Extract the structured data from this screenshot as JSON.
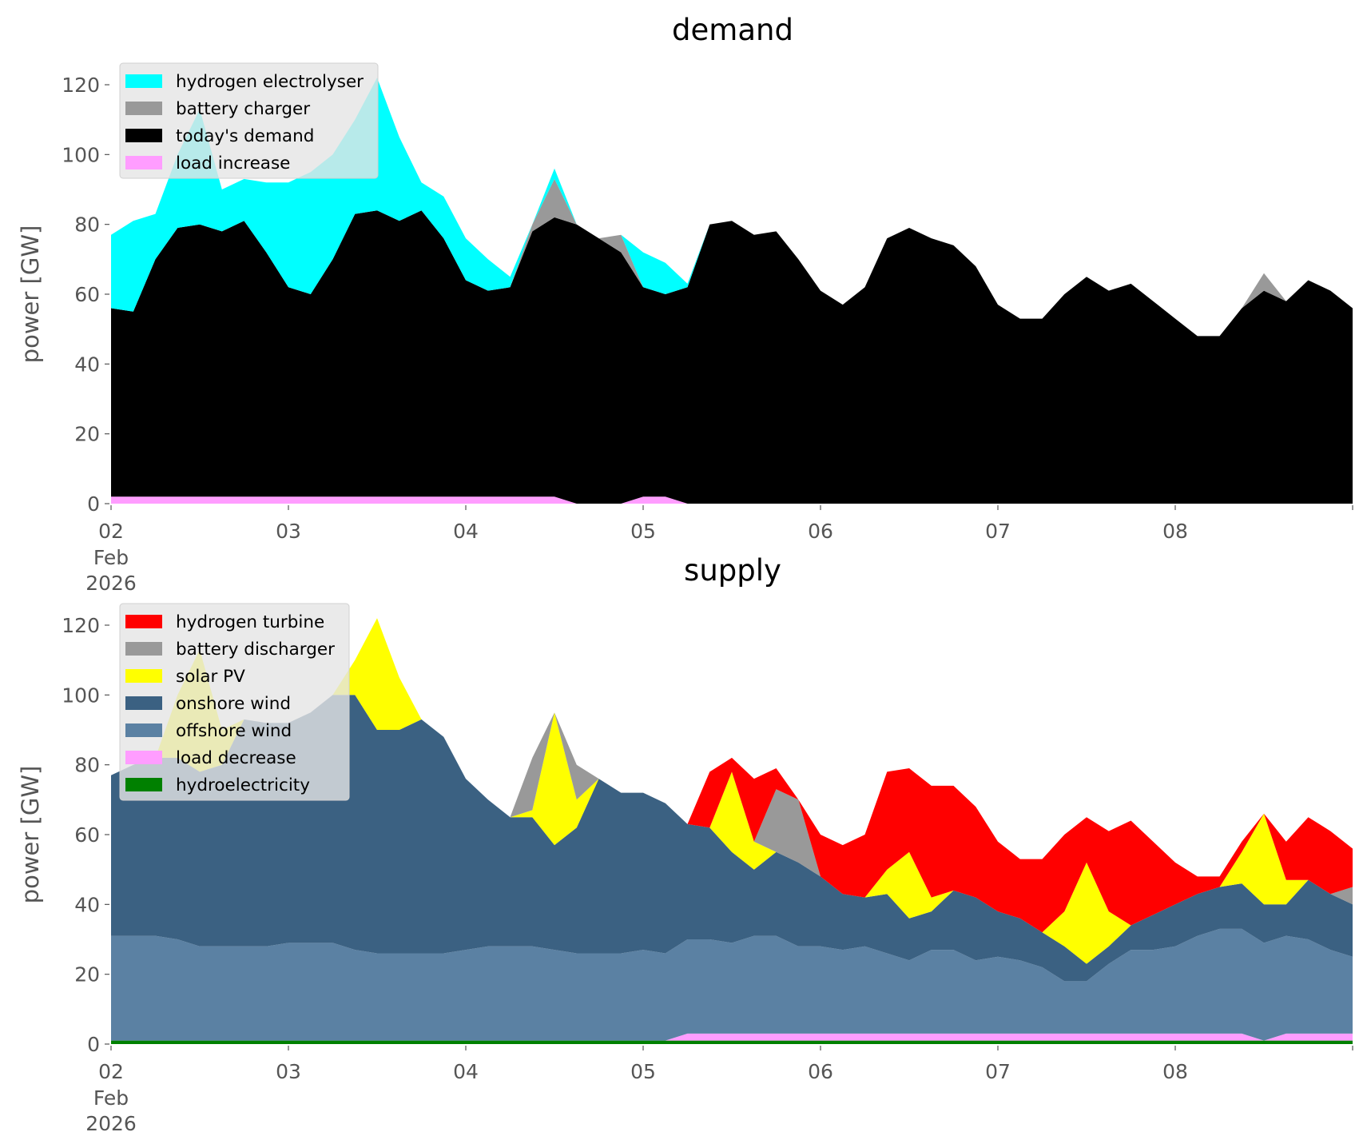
{
  "chart_data": [
    {
      "type": "area",
      "stacked": true,
      "title": "demand",
      "ylabel": "power [GW]",
      "xlabel": "",
      "x_start": "2026-02-02 00:00",
      "step_hours": 3,
      "ylim": [
        0,
        126
      ],
      "yticks": [
        "0",
        "20",
        "40",
        "60",
        "80",
        "100",
        "120"
      ],
      "xticks": [
        "02",
        "03",
        "04",
        "05",
        "06",
        "07",
        "08"
      ],
      "xtick_sub": [
        "Feb",
        "2026"
      ],
      "legend_position": "top-left",
      "series": [
        {
          "name": "load increase",
          "color": "#ff9dff",
          "values": [
            2,
            2,
            2,
            2,
            2,
            2,
            2,
            2,
            2,
            2,
            2,
            2,
            2,
            2,
            2,
            2,
            2,
            2,
            2,
            2,
            2,
            0,
            0,
            0,
            2,
            2,
            0,
            0,
            0,
            0,
            0,
            0,
            0,
            0,
            0,
            0,
            0,
            0,
            0,
            0,
            0,
            0,
            0,
            0,
            0,
            0,
            0,
            0,
            0,
            0,
            0,
            0,
            0,
            0,
            0,
            0,
            0
          ]
        },
        {
          "name": "today's demand",
          "color": "#000000",
          "values": [
            54,
            53,
            68,
            77,
            78,
            76,
            79,
            70,
            60,
            58,
            68,
            81,
            82,
            79,
            82,
            74,
            62,
            59,
            60,
            76,
            80,
            80,
            76,
            72,
            60,
            58,
            62,
            80,
            81,
            77,
            78,
            70,
            61,
            57,
            62,
            76,
            79,
            76,
            74,
            68,
            57,
            53,
            53,
            60,
            65,
            61,
            63,
            58,
            53,
            48,
            48,
            56,
            61,
            58,
            64,
            61,
            56
          ]
        },
        {
          "name": "battery charger",
          "color": "#999999",
          "values": [
            0,
            0,
            0,
            0,
            0,
            0,
            0,
            0,
            0,
            0,
            0,
            0,
            0,
            0,
            0,
            0,
            0,
            0,
            0,
            2,
            11,
            0,
            0,
            5,
            0,
            0,
            0,
            0,
            0,
            0,
            0,
            0,
            0,
            0,
            0,
            0,
            0,
            0,
            0,
            0,
            0,
            0,
            0,
            0,
            0,
            0,
            0,
            0,
            0,
            0,
            0,
            0,
            5,
            0,
            0,
            0,
            0
          ]
        },
        {
          "name": "hydrogen electrolyser",
          "color": "#00ffff",
          "values": [
            21,
            26,
            13,
            21,
            33,
            12,
            12,
            20,
            30,
            35,
            30,
            27,
            38,
            24,
            8,
            12,
            12,
            9,
            3,
            0,
            3,
            0,
            0,
            0,
            10,
            9,
            1,
            0,
            0,
            0,
            0,
            0,
            0,
            0,
            0,
            0,
            0,
            0,
            0,
            0,
            0,
            0,
            0,
            0,
            0,
            0,
            0,
            0,
            0,
            0,
            0,
            0,
            0,
            0,
            0,
            0,
            0
          ]
        }
      ]
    },
    {
      "type": "area",
      "stacked": true,
      "title": "supply",
      "ylabel": "power [GW]",
      "xlabel": "",
      "x_start": "2026-02-02 00:00",
      "step_hours": 3,
      "ylim": [
        0,
        126
      ],
      "yticks": [
        "0",
        "20",
        "40",
        "60",
        "80",
        "100",
        "120"
      ],
      "xticks": [
        "02",
        "03",
        "04",
        "05",
        "06",
        "07",
        "08"
      ],
      "xtick_sub": [
        "Feb",
        "2026"
      ],
      "legend_position": "top-left",
      "series": [
        {
          "name": "hydroelectricity",
          "color": "#008000",
          "values": [
            1,
            1,
            1,
            1,
            1,
            1,
            1,
            1,
            1,
            1,
            1,
            1,
            1,
            1,
            1,
            1,
            1,
            1,
            1,
            1,
            1,
            1,
            1,
            1,
            1,
            1,
            1,
            1,
            1,
            1,
            1,
            1,
            1,
            1,
            1,
            1,
            1,
            1,
            1,
            1,
            1,
            1,
            1,
            1,
            1,
            1,
            1,
            1,
            1,
            1,
            1,
            1,
            1,
            1,
            1,
            1,
            1
          ]
        },
        {
          "name": "load decrease",
          "color": "#ff9dff",
          "values": [
            0,
            0,
            0,
            0,
            0,
            0,
            0,
            0,
            0,
            0,
            0,
            0,
            0,
            0,
            0,
            0,
            0,
            0,
            0,
            0,
            0,
            0,
            0,
            0,
            0,
            0,
            2,
            2,
            2,
            2,
            2,
            2,
            2,
            2,
            2,
            2,
            2,
            2,
            2,
            2,
            2,
            2,
            2,
            2,
            2,
            2,
            2,
            2,
            2,
            2,
            2,
            2,
            0,
            2,
            2,
            2,
            2
          ]
        },
        {
          "name": "offshore wind",
          "color": "#5b81a3",
          "values": [
            30,
            30,
            30,
            29,
            27,
            27,
            27,
            27,
            28,
            28,
            28,
            26,
            25,
            25,
            25,
            25,
            26,
            27,
            27,
            27,
            26,
            25,
            25,
            25,
            26,
            25,
            27,
            27,
            26,
            28,
            28,
            25,
            25,
            24,
            25,
            23,
            21,
            24,
            24,
            21,
            22,
            21,
            19,
            15,
            15,
            20,
            24,
            24,
            25,
            28,
            30,
            30,
            28,
            28,
            27,
            24,
            22
          ]
        },
        {
          "name": "onshore wind",
          "color": "#3b6182",
          "values": [
            46,
            49,
            51,
            52,
            50,
            52,
            65,
            64,
            63,
            66,
            71,
            73,
            64,
            64,
            67,
            62,
            49,
            42,
            37,
            37,
            30,
            36,
            50,
            46,
            45,
            43,
            33,
            32,
            26,
            19,
            24,
            24,
            20,
            16,
            14,
            17,
            12,
            11,
            17,
            18,
            13,
            12,
            10,
            10,
            5,
            5,
            7,
            10,
            12,
            12,
            12,
            13,
            11,
            9,
            17,
            16,
            15
          ]
        },
        {
          "name": "solar PV",
          "color": "#ffff00",
          "values": [
            0,
            0,
            0,
            18,
            35,
            10,
            0,
            0,
            0,
            0,
            0,
            10,
            32,
            15,
            0,
            0,
            0,
            0,
            0,
            2,
            38,
            8,
            0,
            0,
            0,
            0,
            0,
            0,
            23,
            8,
            0,
            0,
            0,
            0,
            0,
            7,
            19,
            4,
            0,
            0,
            0,
            0,
            0,
            10,
            29,
            10,
            0,
            0,
            0,
            0,
            0,
            9,
            26,
            7,
            0,
            0,
            0
          ]
        },
        {
          "name": "battery discharger",
          "color": "#999999",
          "values": [
            0,
            0,
            0,
            0,
            0,
            0,
            0,
            0,
            0,
            0,
            0,
            0,
            0,
            0,
            0,
            0,
            0,
            0,
            0,
            15,
            0,
            10,
            0,
            0,
            0,
            0,
            0,
            0,
            0,
            0,
            18,
            18,
            0,
            0,
            0,
            0,
            0,
            0,
            0,
            0,
            0,
            0,
            0,
            0,
            0,
            0,
            0,
            0,
            0,
            0,
            0,
            0,
            0,
            0,
            0,
            0,
            5
          ]
        },
        {
          "name": "hydrogen turbine",
          "color": "#ff0000",
          "values": [
            0,
            0,
            0,
            0,
            0,
            0,
            0,
            0,
            0,
            0,
            0,
            0,
            0,
            0,
            0,
            0,
            0,
            0,
            0,
            0,
            0,
            0,
            0,
            0,
            0,
            0,
            0,
            16,
            4,
            18,
            6,
            0,
            12,
            14,
            18,
            28,
            24,
            32,
            30,
            26,
            20,
            17,
            21,
            22,
            13,
            23,
            30,
            21,
            12,
            5,
            3,
            3,
            0,
            11,
            18,
            18,
            11
          ]
        }
      ]
    }
  ]
}
